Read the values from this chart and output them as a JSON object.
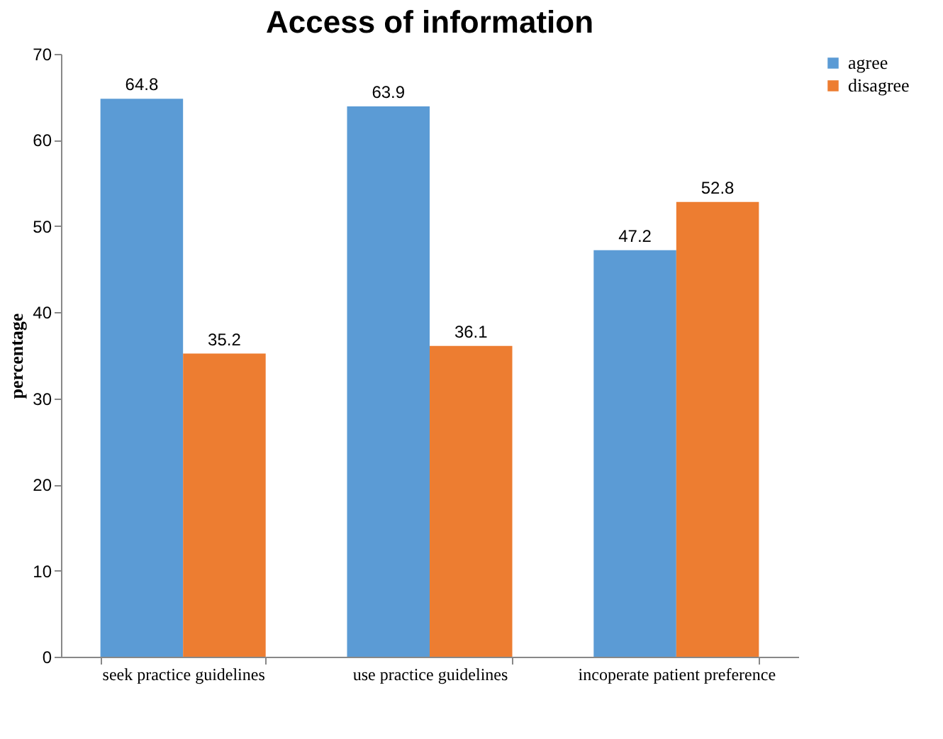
{
  "chart_data": {
    "type": "bar",
    "title": "Access of information",
    "ylabel": "percentage",
    "categories": [
      "seek practice guidelines",
      "use practice guidelines",
      "incoperate patient preference"
    ],
    "series": [
      {
        "name": "agree",
        "color": "#5b9bd5",
        "values": [
          64.8,
          63.9,
          47.2
        ]
      },
      {
        "name": "disagree",
        "color": "#ed7d31",
        "values": [
          35.2,
          36.1,
          52.8
        ]
      }
    ],
    "ylim": [
      0,
      70
    ],
    "yticks": [
      0,
      10,
      20,
      30,
      40,
      50,
      60,
      70
    ],
    "grid": false,
    "legend": "right",
    "data_labels": true
  }
}
